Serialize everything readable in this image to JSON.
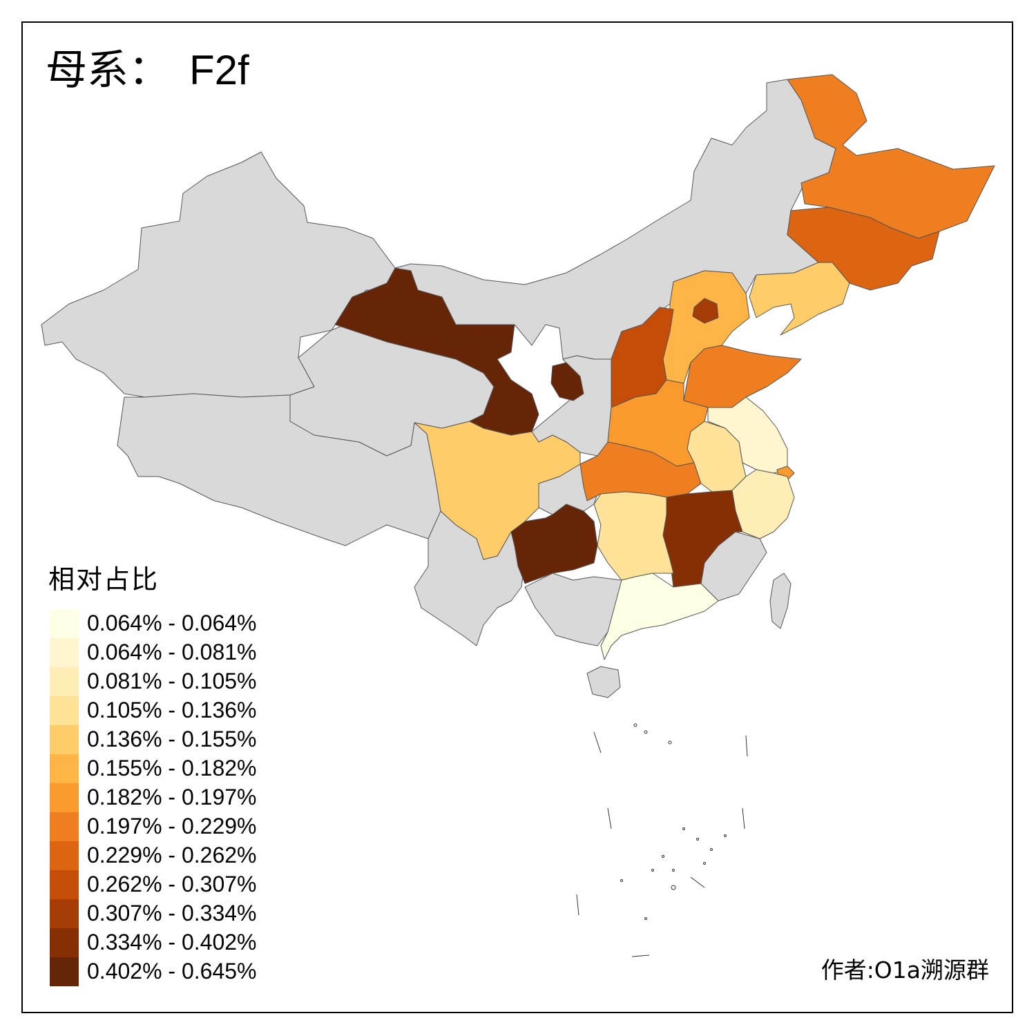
{
  "title": {
    "prefix": "母系：",
    "haplogroup": "F2f"
  },
  "legend": {
    "title": "相对占比",
    "items": [
      {
        "label": "0.064% - 0.064%",
        "color": "#FFFFE5"
      },
      {
        "label": "0.064% - 0.081%",
        "color": "#FFF6D0"
      },
      {
        "label": "0.081% - 0.105%",
        "color": "#FEEDB4"
      },
      {
        "label": "0.105% - 0.136%",
        "color": "#FEE298"
      },
      {
        "label": "0.136% - 0.155%",
        "color": "#FECD6A"
      },
      {
        "label": "0.155% - 0.182%",
        "color": "#FEB545"
      },
      {
        "label": "0.182% - 0.197%",
        "color": "#FB9A2C"
      },
      {
        "label": "0.197% - 0.229%",
        "color": "#EE7E1F"
      },
      {
        "label": "0.229% - 0.262%",
        "color": "#DD6411"
      },
      {
        "label": "0.262% - 0.307%",
        "color": "#C64D07"
      },
      {
        "label": "0.307% - 0.334%",
        "color": "#A63C05"
      },
      {
        "label": "0.334% - 0.402%",
        "color": "#862F05"
      },
      {
        "label": "0.402% - 0.645%",
        "color": "#662506"
      }
    ]
  },
  "map": {
    "no_data_color": "#D9D9D9",
    "region_colors": {
      "heilongjiang": "#EE7E1F",
      "jilin": "#DD6411",
      "liaoning": "#FECD6A",
      "beijing": "#A63C05",
      "hebei": "#FEB545",
      "shanxi": "#C64D07",
      "shandong": "#EE7E1F",
      "henan": "#FB9A2C",
      "hubei": "#EE7E1F",
      "anhui": "#FEE298",
      "jiangsu": "#FFF6D0",
      "shanghai": "#FB9A2C",
      "zhejiang": "#FEEDB4",
      "jiangxi": "#862F05",
      "hunan": "#FEE298",
      "guangdong": "#FFFFE5",
      "guizhou": "#662506",
      "sichuan": "#FECD6A",
      "gansu": "#662506",
      "ningxia": "#662506"
    }
  },
  "credit": "作者:O1a溯源群"
}
